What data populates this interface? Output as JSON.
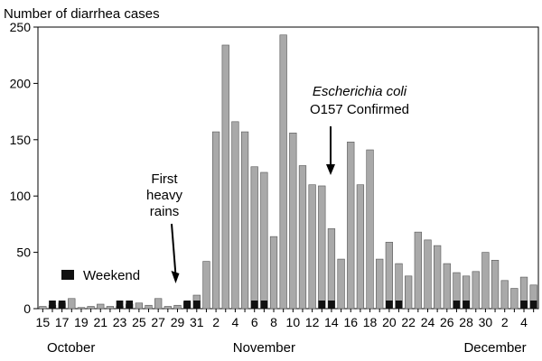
{
  "chart_data": {
    "type": "bar",
    "ylabel": "Number of diarrhea cases",
    "ylim": [
      0,
      250
    ],
    "yticks": [
      "0",
      "50",
      "100",
      "150",
      "200",
      "250"
    ],
    "grid": false,
    "series": [
      {
        "name": "",
        "color": "#a9a9a9",
        "x": [
          "Oct 15",
          "Oct 16",
          "Oct 17",
          "Oct 18",
          "Oct 19",
          "Oct 20",
          "Oct 21",
          "Oct 22",
          "Oct 23",
          "Oct 24",
          "Oct 25",
          "Oct 26",
          "Oct 27",
          "Oct 28",
          "Oct 29",
          "Oct 30",
          "Oct 31",
          "Nov 1",
          "Nov 2",
          "Nov 3",
          "Nov 4",
          "Nov 5",
          "Nov 6",
          "Nov 7",
          "Nov 8",
          "Nov 9",
          "Nov 10",
          "Nov 11",
          "Nov 12",
          "Nov 13",
          "Nov 14",
          "Nov 15",
          "Nov 16",
          "Nov 17",
          "Nov 18",
          "Nov 19",
          "Nov 20",
          "Nov 21",
          "Nov 22",
          "Nov 23",
          "Nov 24",
          "Nov 25",
          "Nov 26",
          "Nov 27",
          "Nov 28",
          "Nov 29",
          "Nov 30",
          "Dec 1",
          "Dec 2",
          "Dec 3",
          "Dec 4",
          "Dec 5"
        ],
        "values": [
          2,
          3,
          5,
          9,
          1,
          2,
          4,
          2,
          2,
          4,
          5,
          3,
          9,
          2,
          3,
          6,
          12,
          42,
          157,
          234,
          166,
          157,
          126,
          121,
          64,
          243,
          156,
          127,
          110,
          109,
          71,
          44,
          148,
          110,
          141,
          44,
          59,
          40,
          29,
          68,
          61,
          56,
          40,
          32,
          29,
          33,
          50,
          43,
          25,
          18,
          28,
          21
        ]
      },
      {
        "name": "Weekend",
        "color": "#111111",
        "x": [
          "Oct 16",
          "Oct 17",
          "Oct 23",
          "Oct 24",
          "Oct 30",
          "Oct 31",
          "Nov 6",
          "Nov 7",
          "Nov 13",
          "Nov 14",
          "Nov 20",
          "Nov 21",
          "Nov 27",
          "Nov 28",
          "Dec 4",
          "Dec 5"
        ],
        "values": [
          4,
          4,
          4,
          4,
          4,
          4,
          4,
          4,
          4,
          4,
          4,
          4,
          4,
          4,
          4,
          4
        ]
      }
    ],
    "xtick_labels": [
      "15",
      "17",
      "19",
      "21",
      "23",
      "25",
      "27",
      "29",
      "31",
      "2",
      "4",
      "6",
      "8",
      "10",
      "12",
      "14",
      "16",
      "18",
      "20",
      "22",
      "24",
      "26",
      "28",
      "30",
      "2",
      "4"
    ],
    "xtick_dates": [
      "Oct 15",
      "Oct 17",
      "Oct 19",
      "Oct 21",
      "Oct 23",
      "Oct 25",
      "Oct 27",
      "Oct 29",
      "Oct 31",
      "Nov 2",
      "Nov 4",
      "Nov 6",
      "Nov 8",
      "Nov 10",
      "Nov 12",
      "Nov 14",
      "Nov 16",
      "Nov 18",
      "Nov 20",
      "Nov 22",
      "Nov 24",
      "Nov 26",
      "Nov 28",
      "Nov 30",
      "Dec 2",
      "Dec 4"
    ],
    "month_labels": [
      {
        "label": "October",
        "date": "Oct 15"
      },
      {
        "label": "November",
        "date": "Nov 7"
      },
      {
        "label": "December",
        "date": "Dec 1"
      }
    ],
    "legend": {
      "label": "Weekend",
      "placement": "bottom-left"
    },
    "annotations": [
      {
        "lines": [
          "First",
          "heavy",
          "rains"
        ],
        "italic_lines": [],
        "points_to": "Oct 29"
      },
      {
        "lines": [
          "Escherichia coli",
          "O157 Confirmed"
        ],
        "italic_lines": [
          0
        ],
        "points_to": "Nov 13"
      }
    ]
  }
}
